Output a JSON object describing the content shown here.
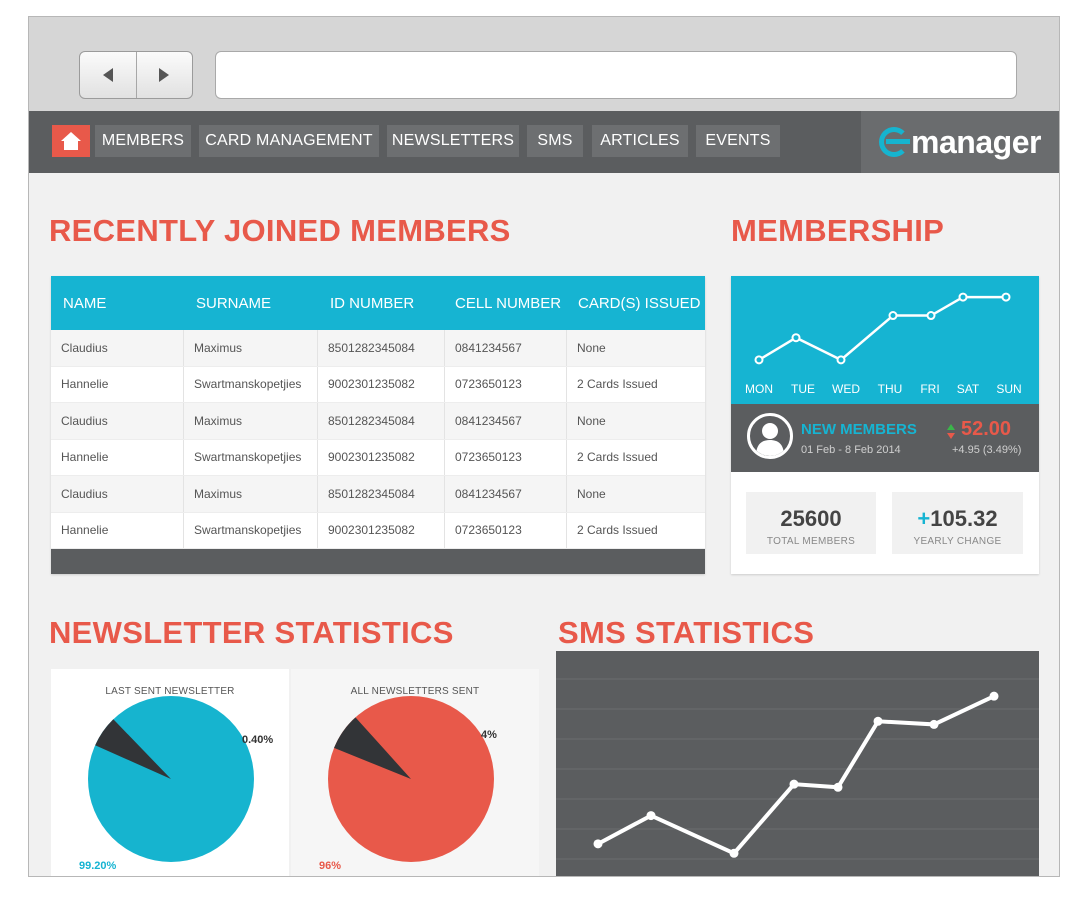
{
  "nav": {
    "home_icon": "house-icon",
    "tabs": [
      "MEMBERS",
      "CARD MANAGEMENT",
      "NEWSLETTERS",
      "SMS",
      "ARTICLES",
      "EVENTS"
    ],
    "logo": "manager"
  },
  "recent": {
    "title": "RECENTLY JOINED MEMBERS",
    "columns": [
      "NAME",
      "SURNAME",
      "ID NUMBER",
      "CELL NUMBER",
      "CARD(S) ISSUED"
    ],
    "rows": [
      [
        "Claudius",
        "Maximus",
        "8501282345084",
        "0841234567",
        "None"
      ],
      [
        "Hannelie",
        "Swartmanskopetjies",
        "9002301235082",
        "0723650123",
        "2 Cards Issued"
      ],
      [
        "Claudius",
        "Maximus",
        "8501282345084",
        "0841234567",
        "None"
      ],
      [
        "Hannelie",
        "Swartmanskopetjies",
        "9002301235082",
        "0723650123",
        "2 Cards Issued"
      ],
      [
        "Claudius",
        "Maximus",
        "8501282345084",
        "0841234567",
        "None"
      ],
      [
        "Hannelie",
        "Swartmanskopetjies",
        "9002301235082",
        "0723650123",
        "2 Cards Issued"
      ]
    ]
  },
  "membership": {
    "title": "MEMBERSHIP",
    "new_label": "NEW MEMBERS",
    "range": "01 Feb - 8 Feb 2014",
    "value": "52.00",
    "change": "+4.95 (3.49%)",
    "total": "25600",
    "total_label": "TOTAL MEMBERS",
    "yearly_plus": "+",
    "yearly": "105.32",
    "yearly_label": "YEARLY CHANGE"
  },
  "newsletter": {
    "title": "NEWSLETTER STATISTICS",
    "last_title": "LAST SENT NEWSLETTER",
    "last_small": "0.40%",
    "last_big": "99.20%",
    "all_title": "ALL NEWSLETTERS SENT",
    "all_small": "4%",
    "all_big": "96%"
  },
  "sms": {
    "title": "SMS STATISTICS"
  },
  "colors": {
    "accent": "#e8594a",
    "cyan": "#16b4d2",
    "dark": "#5b5d5f",
    "slice": "#323437"
  },
  "chart_data": [
    {
      "type": "line",
      "x": [
        "MON",
        "TUE",
        "WED",
        "THU",
        "FRI",
        "SAT",
        "SUN"
      ],
      "series": [
        {
          "values": [
            46,
            52,
            46,
            58,
            58,
            63,
            63
          ]
        }
      ],
      "ylim": [
        40,
        66
      ],
      "grid": false
    },
    {
      "type": "pie",
      "title": "LAST SENT NEWSLETTER",
      "labels": [
        "99.20%",
        "0.40%"
      ],
      "values": [
        99.2,
        0.4
      ]
    },
    {
      "type": "pie",
      "title": "ALL NEWSLETTERS SENT",
      "labels": [
        "96%",
        "4%"
      ],
      "values": [
        96,
        4
      ]
    },
    {
      "type": "line",
      "series": [
        {
          "values": [
            15,
            24,
            12,
            34,
            33,
            54,
            53,
            62
          ]
        }
      ],
      "ylim": [
        0,
        70
      ],
      "grid": true
    }
  ]
}
